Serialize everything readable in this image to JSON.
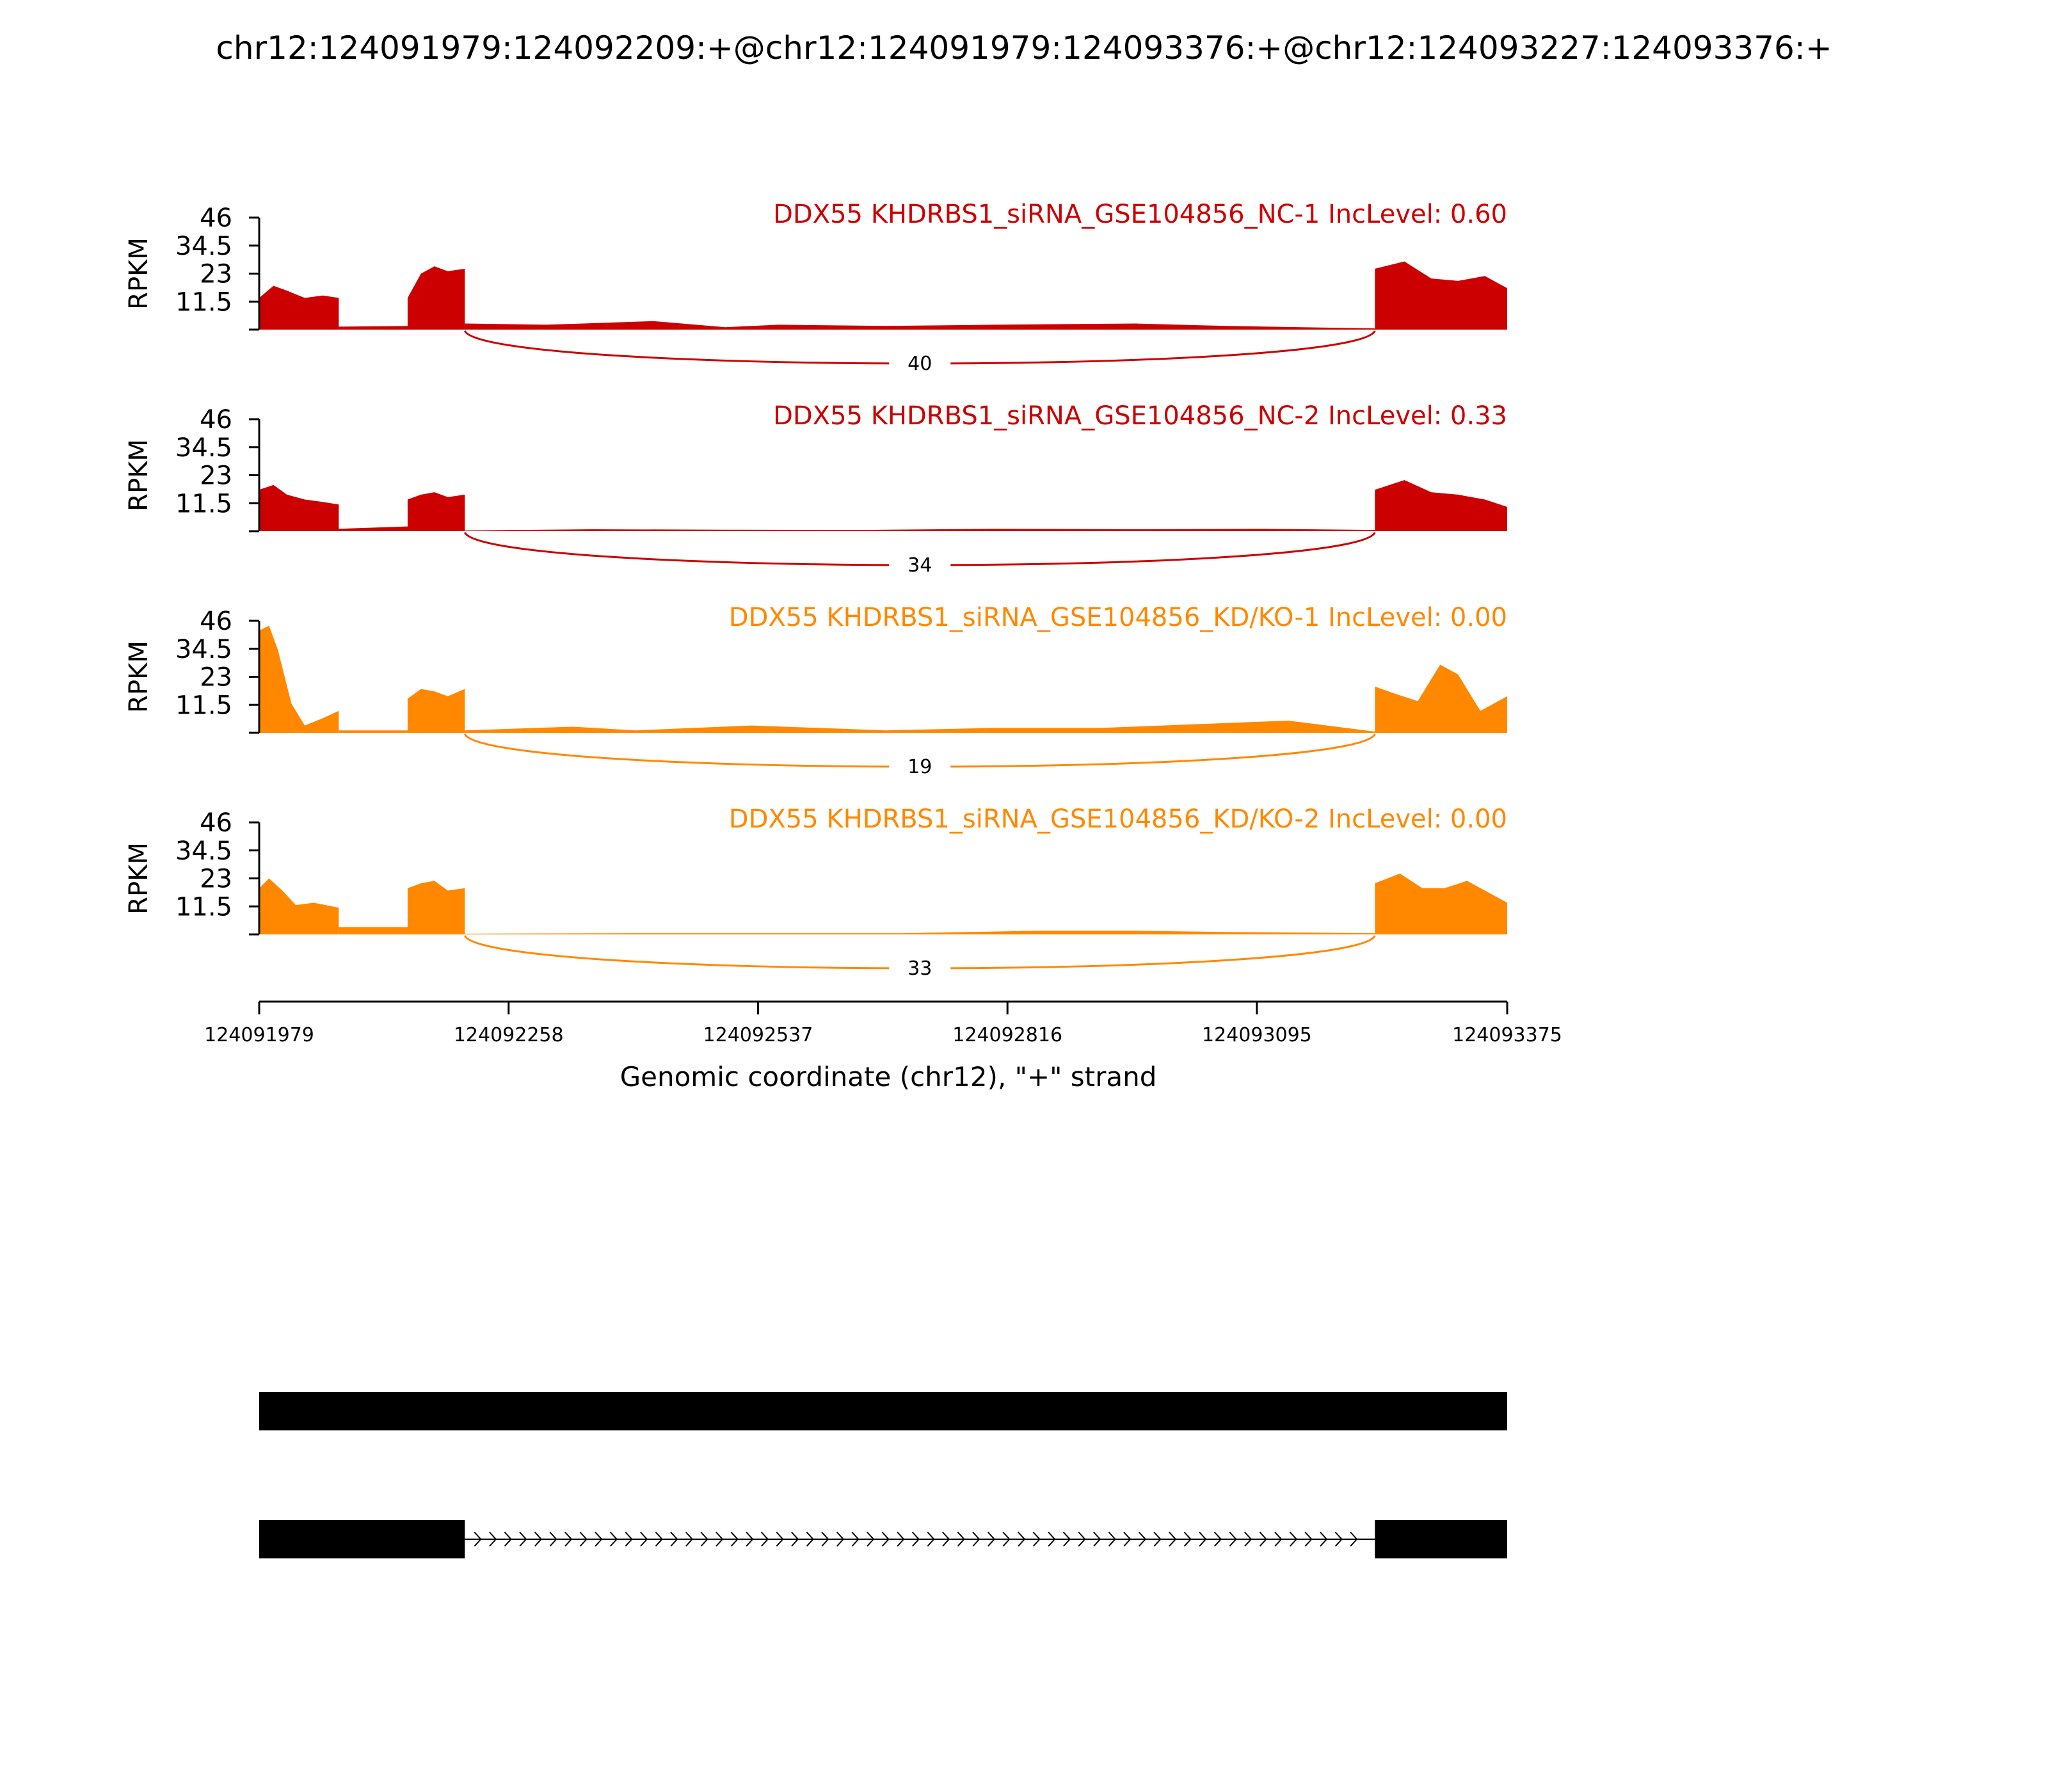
{
  "title": "chr12:124091979:124092209:+@chr12:124091979:124093376:+@chr12:124093227:124093376:+",
  "colors": {
    "nc": "#cc0000",
    "kd": "#ff8800",
    "axis": "#000000",
    "gene": "#000000"
  },
  "chart_data": {
    "type": "area",
    "xlabel": "Genomic coordinate (chr12), \"+\" strand",
    "x_ticks": [
      "124091979",
      "124092258",
      "124092537",
      "124092816",
      "124093095",
      "124093375"
    ],
    "xlim": [
      124091979,
      124093375
    ],
    "ylabel": "RPKM",
    "y_ticks": [
      "46",
      "34.5",
      "23",
      "11.5"
    ],
    "ylim": [
      0,
      46
    ],
    "exons": [
      [
        124091979,
        124092209
      ],
      [
        124093227,
        124093375
      ]
    ],
    "series": [
      {
        "name": "DDX55 KHDRBS1_siRNA_GSE104856_NC-1 IncLevel: 0.60",
        "group": "nc",
        "junction_label": "40",
        "segments": [
          {
            "x": [
              124091979,
              124091995,
              124092010,
              124092030,
              124092050,
              124092068
            ],
            "y": [
              13,
              18,
              16,
              13,
              14,
              13
            ]
          },
          {
            "x": [
              124092068,
              124092150
            ],
            "y": [
              1.2,
              1.5
            ]
          },
          {
            "x": [
              124092145,
              124092160,
              124092175,
              124092190,
              124092209
            ],
            "y": [
              13,
              23,
              26,
              24,
              25
            ]
          },
          {
            "x": [
              124092209,
              124092300,
              124092420,
              124092500,
              124092560,
              124092680,
              124092800,
              124092960,
              124093060,
              124093227
            ],
            "y": [
              2.5,
              2.0,
              3.5,
              1.0,
              2.0,
              1.5,
              2.0,
              2.5,
              1.5,
              0.5
            ]
          },
          {
            "x": [
              124093227,
              124093260,
              124093290,
              124093320,
              124093350,
              124093375
            ],
            "y": [
              25,
              28,
              21,
              20,
              22,
              17
            ]
          }
        ]
      },
      {
        "name": "DDX55 KHDRBS1_siRNA_GSE104856_NC-2 IncLevel: 0.33",
        "group": "nc",
        "junction_label": "34",
        "segments": [
          {
            "x": [
              124091979,
              124091995,
              124092010,
              124092030,
              124092050,
              124092068
            ],
            "y": [
              17,
              19,
              15,
              13,
              12,
              11
            ]
          },
          {
            "x": [
              124092068,
              124092150
            ],
            "y": [
              1.0,
              2.0
            ]
          },
          {
            "x": [
              124092145,
              124092160,
              124092175,
              124092190,
              124092209
            ],
            "y": [
              13,
              15,
              16,
              14,
              15
            ]
          },
          {
            "x": [
              124092209,
              124092350,
              124092500,
              124092650,
              124092800,
              124092960,
              124093100,
              124093227
            ],
            "y": [
              0.3,
              0.8,
              0.6,
              0.5,
              1.0,
              0.8,
              1.0,
              0.5
            ]
          },
          {
            "x": [
              124093227,
              124093260,
              124093290,
              124093320,
              124093350,
              124093375
            ],
            "y": [
              17,
              21,
              16,
              15,
              13,
              10
            ]
          }
        ]
      },
      {
        "name": "DDX55 KHDRBS1_siRNA_GSE104856_KD/KO-1 IncLevel: 0.00",
        "group": "kd",
        "junction_label": "19",
        "segments": [
          {
            "x": [
              124091979,
              124091990,
              124092000,
              124092015,
              124092030,
              124092050,
              124092068
            ],
            "y": [
              42,
              44,
              34,
              12,
              3,
              6,
              9
            ]
          },
          {
            "x": [
              124092068,
              124092150
            ],
            "y": [
              1.0,
              1.0
            ]
          },
          {
            "x": [
              124092145,
              124092160,
              124092175,
              124092190,
              124092209
            ],
            "y": [
              14,
              18,
              17,
              15,
              18
            ]
          },
          {
            "x": [
              124092209,
              124092330,
              124092400,
              124092530,
              124092680,
              124092800,
              124092920,
              124093060,
              124093130,
              124093227
            ],
            "y": [
              1.0,
              2.5,
              1.0,
              3.0,
              1.0,
              2.0,
              2.0,
              4.0,
              5.0,
              0.5
            ]
          },
          {
            "x": [
              124093227,
              124093250,
              124093275,
              124093300,
              124093320,
              124093345,
              124093375
            ],
            "y": [
              19,
              16,
              13,
              28,
              24,
              9,
              15
            ]
          }
        ]
      },
      {
        "name": "DDX55 KHDRBS1_siRNA_GSE104856_KD/KO-2 IncLevel: 0.00",
        "group": "kd",
        "junction_label": "33",
        "segments": [
          {
            "x": [
              124091979,
              124091990,
              124092005,
              124092020,
              124092040,
              124092068
            ],
            "y": [
              19,
              23,
              18,
              12,
              13,
              11
            ]
          },
          {
            "x": [
              124092068,
              124092150
            ],
            "y": [
              3.0,
              3.0
            ]
          },
          {
            "x": [
              124092145,
              124092160,
              124092175,
              124092190,
              124092209
            ],
            "y": [
              19,
              21,
              22,
              18,
              19
            ]
          },
          {
            "x": [
              124092209,
              124092400,
              124092550,
              124092700,
              124092850,
              124092960,
              124093060,
              124093227
            ],
            "y": [
              0.3,
              0.5,
              0.5,
              0.5,
              1.5,
              1.5,
              1.0,
              0.5
            ]
          },
          {
            "x": [
              124093227,
              124093255,
              124093280,
              124093305,
              124093330,
              124093355,
              124093375
            ],
            "y": [
              21,
              25,
              19,
              19,
              22,
              17,
              13
            ]
          }
        ]
      }
    ],
    "transcripts": [
      {
        "exons": [
          [
            124091979,
            124093375
          ]
        ]
      },
      {
        "exons": [
          [
            124091979,
            124092209
          ],
          [
            124093227,
            124093375
          ]
        ],
        "strand": "+"
      }
    ]
  }
}
